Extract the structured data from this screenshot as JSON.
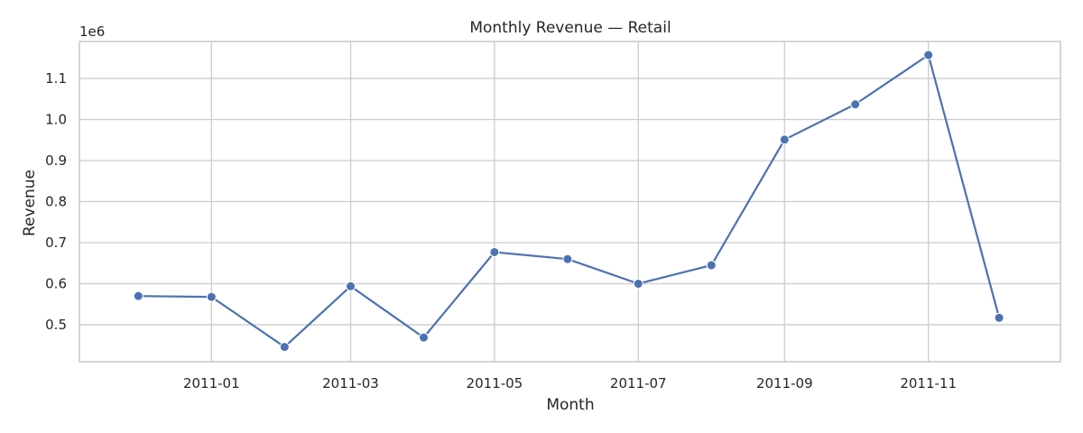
{
  "chart_data": {
    "type": "line",
    "title": "Monthly Revenue — Retail",
    "xlabel": "Month",
    "ylabel": "Revenue",
    "y_scale_label": "1e6",
    "grid": true,
    "series_color": "#4c72b0",
    "x": [
      "2010-12-01",
      "2011-01-01",
      "2011-02-01",
      "2011-03-01",
      "2011-04-01",
      "2011-05-01",
      "2011-06-01",
      "2011-07-01",
      "2011-08-01",
      "2011-09-01",
      "2011-10-01",
      "2011-11-01",
      "2011-12-01"
    ],
    "series": [
      {
        "values": [
          570000,
          568000,
          446000,
          594000,
          469000,
          677000,
          660000,
          600000,
          645000,
          951000,
          1037000,
          1157000,
          517000
        ]
      }
    ],
    "x_ticks": [
      "2011-01-01",
      "2011-03-01",
      "2011-05-01",
      "2011-07-01",
      "2011-09-01",
      "2011-11-01"
    ],
    "x_tick_labels": [
      "2011-01",
      "2011-03",
      "2011-05",
      "2011-07",
      "2011-09",
      "2011-11"
    ],
    "y_ticks": [
      0.5,
      0.6,
      0.7,
      0.8,
      0.9,
      1.0,
      1.1
    ],
    "y_tick_labels": [
      "0.5",
      "0.6",
      "0.7",
      "0.8",
      "0.9",
      "1.0",
      "1.1"
    ],
    "xlim": [
      "2010-11-06",
      "2011-12-27"
    ],
    "ylim": [
      410000,
      1190000
    ]
  }
}
